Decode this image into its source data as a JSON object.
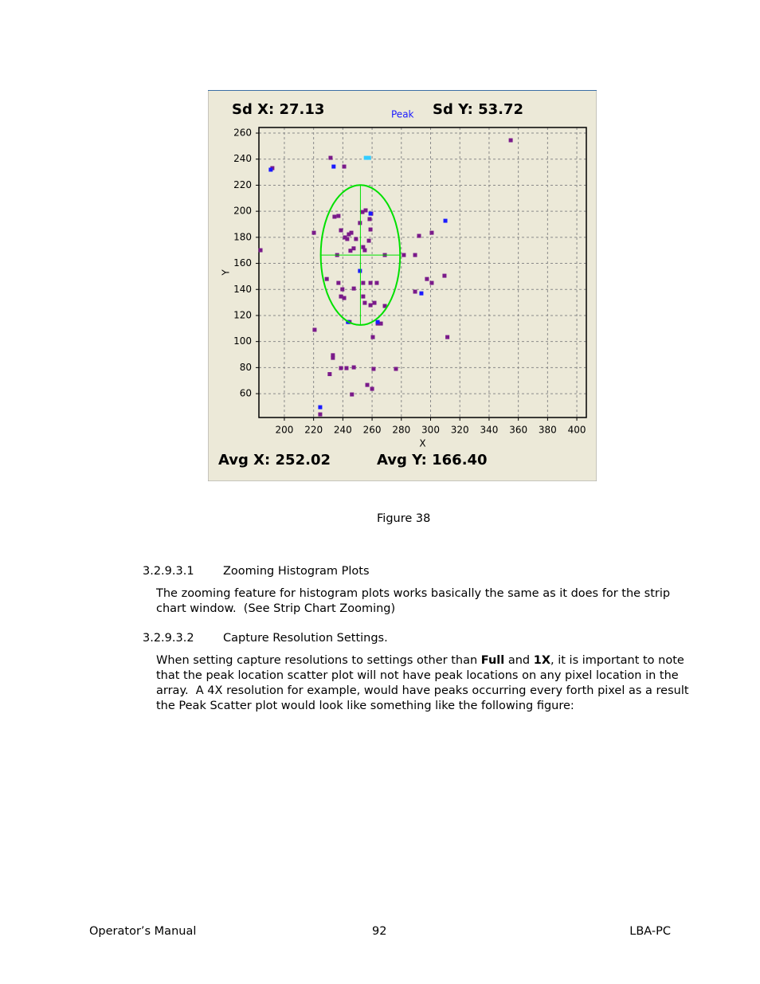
{
  "chart_data": {
    "type": "scatter",
    "xlabel": "X",
    "ylabel": "Y",
    "annotation": "Peak",
    "xlim": [
      182.6,
      406.5
    ],
    "ylim": [
      41.7,
      264.3
    ],
    "xticks": [
      200,
      220,
      240,
      260,
      280,
      300,
      320,
      340,
      360,
      380,
      400
    ],
    "yticks": [
      60,
      80,
      100,
      120,
      140,
      160,
      180,
      200,
      220,
      240,
      260
    ],
    "grid": true,
    "ellipse_color": "#00e000",
    "stats": {
      "sd_x": {
        "label": "Sd X:",
        "value": 27.13
      },
      "sd_y": {
        "label": "Sd Y:",
        "value": 53.72
      },
      "avg_x": {
        "label": "Avg X:",
        "value": 252.02
      },
      "avg_y": {
        "label": "Avg Y:",
        "value": 166.4,
        "value_label": "166.40"
      }
    },
    "series": [
      {
        "color": "#7a1a8a",
        "x": [
          354.8,
          191.8,
          231.6,
          240.9,
          220.2,
          183.7,
          229,
          220.7,
          233.2,
          233.2,
          231,
          238.7,
          242.5,
          247.5,
          261,
          276.3,
          246.2,
          256.7,
          260,
          224.5,
          234.3,
          237,
          238.7,
          241.4,
          244.1,
          245.8,
          243,
          249,
          245.2,
          247.4,
          236.1,
          253.4,
          255.6,
          258.3,
          251.7,
          258.9,
          257.8,
          253.9,
          255,
          259.4,
          253.9,
          258.9,
          263.2,
          237,
          239.7,
          247.5,
          238.7,
          240.9,
          253.9,
          255,
          258.9,
          261.6,
          268.7,
          244.6,
          263.8,
          266,
          260.5,
          268.7,
          281.7,
          289.4,
          292.1,
          300.8,
          297.5,
          300.8,
          289.4,
          309.5,
          311.5
        ],
        "y": [
          254.5,
          233.1,
          241,
          234.3,
          183.5,
          170.1,
          148,
          109,
          89.5,
          87.5,
          75,
          79.6,
          79.6,
          80.2,
          79,
          79,
          59.4,
          66.7,
          63.7,
          44.1,
          195.8,
          196.4,
          185.4,
          179.9,
          182.3,
          183.5,
          178.7,
          178.7,
          169.7,
          171.5,
          166.4,
          199.4,
          200.7,
          194,
          191,
          186,
          177.4,
          172.5,
          170.1,
          198.2,
          145,
          145,
          145,
          145,
          140.1,
          140.7,
          134.6,
          133.4,
          134.6,
          129.7,
          127.9,
          129.7,
          127.3,
          115,
          113.8,
          113.8,
          103.4,
          166.4,
          166.4,
          166.4,
          181.1,
          183.5,
          148,
          145,
          138.3,
          150.5,
          103.4
        ]
      },
      {
        "color": "#1a1aff",
        "x": [
          190.7,
          233.7,
          258.9,
          251.7,
          243.5,
          263.8,
          293.7,
          310.1,
          224.5
        ],
        "y": [
          231.9,
          234.3,
          198.2,
          154.2,
          115,
          115,
          137,
          192.7,
          49.6
        ]
      },
      {
        "color": "#33ccff",
        "x": [
          255.7,
          257.9
        ],
        "y": [
          241,
          241
        ]
      }
    ]
  },
  "figure_caption": "Figure 38",
  "sections": [
    {
      "number": "3.2.9.3.1",
      "title": "Zooming Histogram Plots",
      "lines": [
        [
          {
            "text": "The zooming feature for histogram plots works basically the same as it does for the strip"
          }
        ],
        [
          {
            "text": "chart window.  (See Strip Chart Zooming)"
          }
        ]
      ]
    },
    {
      "number": "3.2.9.3.2",
      "title": "Capture Resolution Settings.",
      "lines": [
        [
          {
            "text": "When setting capture resolutions to settings other than "
          },
          {
            "text": "Full",
            "bold": true
          },
          {
            "text": " and "
          },
          {
            "text": "1X",
            "bold": true
          },
          {
            "text": ", it is important to note"
          }
        ],
        [
          {
            "text": "that the peak location scatter plot will not have peak locations on any pixel location in the"
          }
        ],
        [
          {
            "text": "array.  A 4X resolution for example, would have peaks occurring every forth pixel as a result"
          }
        ],
        [
          {
            "text": "the Peak Scatter plot would look like something like the following figure:"
          }
        ]
      ]
    }
  ],
  "footer": {
    "left": "Operator’s Manual",
    "center": "92",
    "right": "LBA-PC"
  }
}
